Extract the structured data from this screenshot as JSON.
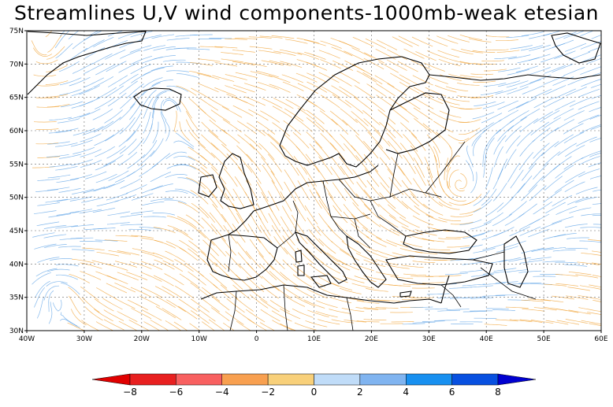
{
  "title": "Streamlines U,V wind components-1000mb-weak etesian",
  "map": {
    "lon_range": [
      -40,
      60
    ],
    "lat_range": [
      30,
      75
    ],
    "lon_ticks": [
      "40W",
      "30W",
      "20W",
      "10W",
      "0",
      "10E",
      "20E",
      "30E",
      "40E",
      "50E",
      "60E"
    ],
    "lat_ticks": [
      "30N",
      "35N",
      "40N",
      "45N",
      "50N",
      "55N",
      "60N",
      "65N",
      "70N",
      "75N"
    ],
    "grid": true,
    "streamline_positive_color": "#5aa0e6",
    "streamline_negative_color": "#f0a030",
    "coastline_color": "#000000"
  },
  "colorbar": {
    "ticks": [
      "−8",
      "−6",
      "−4",
      "−2",
      "0",
      "2",
      "4",
      "6",
      "8"
    ],
    "colors": [
      "#e82020",
      "#f86060",
      "#f8a050",
      "#f8d07a",
      "#c0dcf8",
      "#80b4f0",
      "#1890f0",
      "#0850e0"
    ],
    "low_extend_color": "#e00000",
    "high_extend_color": "#0000d0"
  }
}
